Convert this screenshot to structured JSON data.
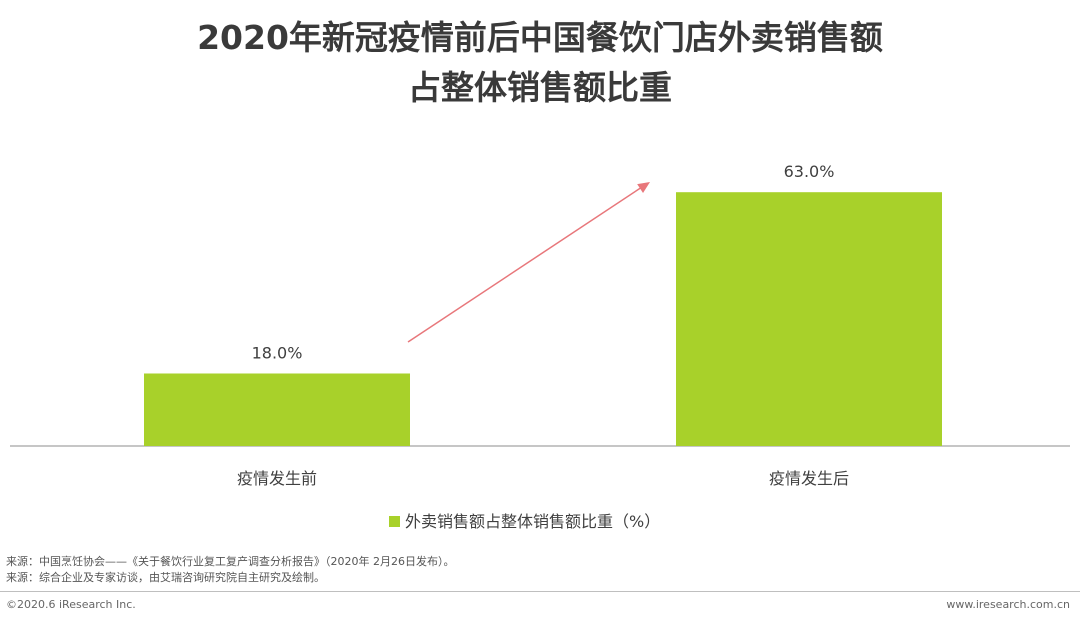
{
  "title_lines": [
    "2020年新冠疫情前后中国餐饮门店外卖销售额",
    "占整体销售额比重"
  ],
  "chart_data": {
    "type": "bar",
    "categories": [
      "疫情发生前",
      "疫情发生后"
    ],
    "series": [
      {
        "name": "外卖销售额占整体销售额比重（%）",
        "values": [
          18.0,
          63.0
        ]
      }
    ],
    "value_labels": [
      "18.0%",
      "63.0%"
    ],
    "ylim": [
      0,
      70
    ],
    "grid": false,
    "legend": "bottom-center",
    "bar_color": "#a8d12a",
    "arrow_color": "#e8777b"
  },
  "sources": [
    "来源：中国烹饪协会——《关于餐饮行业复工复产调查分析报告》（2020年 2月26日发布）。",
    "来源：综合企业及专家访谈，由艾瑞咨询研究院自主研究及绘制。"
  ],
  "footer": {
    "copyright": "©2020.6 iResearch Inc.",
    "url": "www.iresearch.com.cn"
  }
}
